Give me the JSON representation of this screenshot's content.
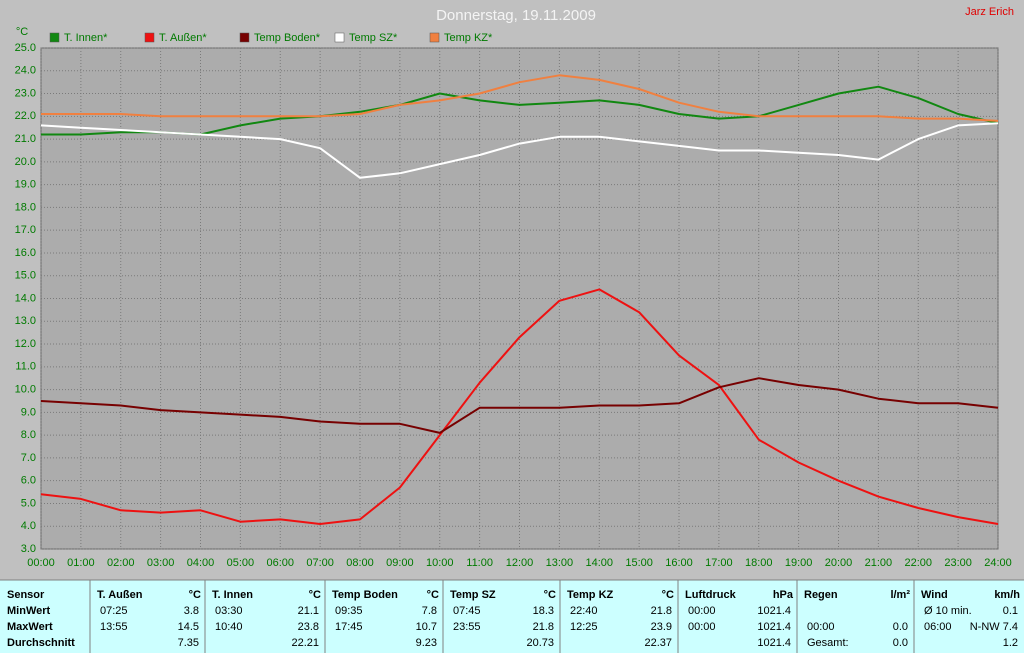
{
  "chart_data": {
    "type": "line",
    "title": "Donnerstag, 19.11.2009",
    "author": "Jarz Erich",
    "y_label": "°C",
    "x": [
      0,
      1,
      2,
      3,
      4,
      5,
      6,
      7,
      8,
      9,
      10,
      11,
      12,
      13,
      14,
      15,
      16,
      17,
      18,
      19,
      20,
      21,
      22,
      23,
      24
    ],
    "series": [
      {
        "name": "T. Innen*",
        "color": "#118811",
        "values": [
          21.2,
          21.2,
          21.3,
          21.3,
          21.2,
          21.6,
          21.9,
          22.0,
          22.2,
          22.5,
          23.0,
          22.7,
          22.5,
          22.6,
          22.7,
          22.5,
          22.1,
          21.9,
          22.0,
          22.5,
          23.0,
          23.3,
          22.8,
          22.1,
          21.7
        ]
      },
      {
        "name": "T. Außen*",
        "color": "#ee1111",
        "values": [
          5.4,
          5.2,
          4.7,
          4.6,
          4.7,
          4.2,
          4.3,
          4.1,
          4.3,
          5.7,
          8.0,
          10.3,
          12.3,
          13.9,
          14.4,
          13.4,
          11.5,
          10.2,
          7.8,
          6.8,
          6.0,
          5.3,
          4.8,
          4.4,
          4.1
        ]
      },
      {
        "name": "Temp Boden*",
        "color": "#770000",
        "values": [
          9.5,
          9.4,
          9.3,
          9.1,
          9.0,
          8.9,
          8.8,
          8.6,
          8.5,
          8.5,
          8.1,
          9.2,
          9.2,
          9.2,
          9.3,
          9.3,
          9.4,
          10.1,
          10.5,
          10.2,
          10.0,
          9.6,
          9.4,
          9.4,
          9.2
        ]
      },
      {
        "name": "Temp SZ*",
        "color": "#ffffff",
        "values": [
          21.6,
          21.5,
          21.4,
          21.3,
          21.2,
          21.1,
          21.0,
          20.6,
          19.3,
          19.5,
          19.9,
          20.3,
          20.8,
          21.1,
          21.1,
          20.9,
          20.7,
          20.5,
          20.5,
          20.4,
          20.3,
          20.1,
          21.0,
          21.6,
          21.7
        ]
      },
      {
        "name": "Temp KZ*",
        "color": "#f08040",
        "values": [
          22.1,
          22.1,
          22.1,
          22.0,
          22.0,
          22.0,
          22.0,
          22.0,
          22.1,
          22.5,
          22.7,
          23.0,
          23.5,
          23.8,
          23.6,
          23.2,
          22.6,
          22.2,
          22.0,
          22.0,
          22.0,
          22.0,
          21.9,
          21.9,
          21.8
        ]
      }
    ],
    "xlim": [
      0,
      24
    ],
    "xticks": [
      {
        "value": 0,
        "label": "00:00"
      },
      {
        "value": 1,
        "label": "01:00"
      },
      {
        "value": 2,
        "label": "02:00"
      },
      {
        "value": 3,
        "label": "03:00"
      },
      {
        "value": 4,
        "label": "04:00"
      },
      {
        "value": 5,
        "label": "05:00"
      },
      {
        "value": 6,
        "label": "06:00"
      },
      {
        "value": 7,
        "label": "07:00"
      },
      {
        "value": 8,
        "label": "08:00"
      },
      {
        "value": 9,
        "label": "09:00"
      },
      {
        "value": 10,
        "label": "10:00"
      },
      {
        "value": 11,
        "label": "11:00"
      },
      {
        "value": 12,
        "label": "12:00"
      },
      {
        "value": 13,
        "label": "13:00"
      },
      {
        "value": 14,
        "label": "14:00"
      },
      {
        "value": 15,
        "label": "15:00"
      },
      {
        "value": 16,
        "label": "16:00"
      },
      {
        "value": 17,
        "label": "17:00"
      },
      {
        "value": 18,
        "label": "18:00"
      },
      {
        "value": 19,
        "label": "19:00"
      },
      {
        "value": 20,
        "label": "20:00"
      },
      {
        "value": 21,
        "label": "21:00"
      },
      {
        "value": 22,
        "label": "22:00"
      },
      {
        "value": 23,
        "label": "23:00"
      },
      {
        "value": 24,
        "label": "24:00"
      }
    ],
    "ylim": [
      3,
      25
    ],
    "yticks": [
      {
        "value": 3,
        "label": "3.0"
      },
      {
        "value": 4,
        "label": "4.0"
      },
      {
        "value": 5,
        "label": "5.0"
      },
      {
        "value": 6,
        "label": "6.0"
      },
      {
        "value": 7,
        "label": "7.0"
      },
      {
        "value": 8,
        "label": "8.0"
      },
      {
        "value": 9,
        "label": "9.0"
      },
      {
        "value": 10,
        "label": "10.0"
      },
      {
        "value": 11,
        "label": "11.0"
      },
      {
        "value": 12,
        "label": "12.0"
      },
      {
        "value": 13,
        "label": "13.0"
      },
      {
        "value": 14,
        "label": "14.0"
      },
      {
        "value": 15,
        "label": "15.0"
      },
      {
        "value": 16,
        "label": "16.0"
      },
      {
        "value": 17,
        "label": "17.0"
      },
      {
        "value": 18,
        "label": "18.0"
      },
      {
        "value": 19,
        "label": "19.0"
      },
      {
        "value": 20,
        "label": "20.0"
      },
      {
        "value": 21,
        "label": "21.0"
      },
      {
        "value": 22,
        "label": "22.0"
      },
      {
        "value": 23,
        "label": "23.0"
      },
      {
        "value": 24,
        "label": "24.0"
      },
      {
        "value": 25,
        "label": "25.0"
      }
    ],
    "grid": true
  },
  "table": {
    "columns": [
      [
        "Sensor"
      ],
      [
        "T. Außen",
        "°C"
      ],
      [
        "T. Innen",
        "°C"
      ],
      [
        "Temp Boden",
        "°C"
      ],
      [
        "Temp SZ",
        "°C"
      ],
      [
        "Temp KZ",
        "°C"
      ],
      [
        "Luftdruck",
        "hPa"
      ],
      [
        "Regen",
        "l/m²"
      ],
      [
        "Wind",
        "km/h"
      ]
    ],
    "rows": [
      {
        "label": "MinWert",
        "cells": [
          [
            "07:25",
            "3.8"
          ],
          [
            "03:30",
            "21.1"
          ],
          [
            "09:35",
            "7.8"
          ],
          [
            "07:45",
            "18.3"
          ],
          [
            "22:40",
            "21.8"
          ],
          [
            "00:00",
            "1021.4"
          ],
          [],
          [
            "Ø 10 min.",
            "0.1"
          ]
        ]
      },
      {
        "label": "MaxWert",
        "cells": [
          [
            "13:55",
            "14.5"
          ],
          [
            "10:40",
            "23.8"
          ],
          [
            "17:45",
            "10.7"
          ],
          [
            "23:55",
            "21.8"
          ],
          [
            "12:25",
            "23.9"
          ],
          [
            "00:00",
            "1021.4"
          ],
          [
            "00:00",
            "0.0"
          ],
          [
            "06:00",
            "N-NW 7.4"
          ]
        ]
      },
      {
        "label": "Durchschnitt",
        "cells": [
          [
            "7.35"
          ],
          [
            "22.21"
          ],
          [
            "9.23"
          ],
          [
            "20.73"
          ],
          [
            "22.37"
          ],
          [
            "1021.4"
          ],
          [
            "Gesamt:",
            "0.0"
          ],
          [
            "1.2"
          ]
        ]
      }
    ]
  }
}
